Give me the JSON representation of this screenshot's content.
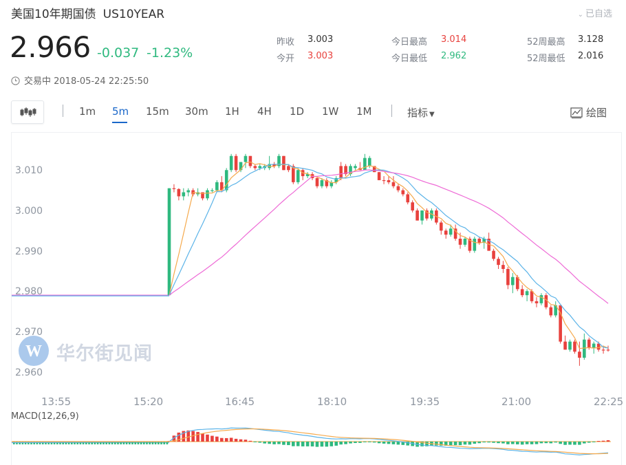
{
  "header": {
    "name": "美国10年期国债",
    "code": "US10YEAR",
    "watch_label": "已自选",
    "price": "2.966",
    "change": "-0.037",
    "change_pct": "-1.23%",
    "status": "交易中 2018-05-24 22:25:50"
  },
  "stats": {
    "prev_close_label": "昨收",
    "prev_close": "3.003",
    "open_label": "今开",
    "open": "3.003",
    "high_label": "今日最高",
    "high": "3.014",
    "low_label": "今日最低",
    "low": "2.962",
    "wk52_high_label": "52周最高",
    "wk52_high": "3.128",
    "wk52_low_label": "52周最低",
    "wk52_low": "2.016"
  },
  "toolbar": {
    "tabs": [
      "1m",
      "5m",
      "15m",
      "30m",
      "1H",
      "4H",
      "1D",
      "1W",
      "1M"
    ],
    "active_tab": "5m",
    "indicator_label": "指标",
    "draw_label": "绘图"
  },
  "watermark": "华尔街见闻",
  "colors": {
    "up": "#2fb97f",
    "down": "#e8413d",
    "ma5": "#f5a94c",
    "ma10": "#5ab3e8",
    "ma30": "#ee6ad6",
    "accent": "#1a67c9"
  },
  "chart_data": {
    "type": "candlestick",
    "ylim": [
      2.956,
      3.016
    ],
    "ytick_labels": [
      "3.010",
      "3.000",
      "2.990",
      "2.980",
      "2.970",
      "2.960"
    ],
    "yticks": [
      3.01,
      3.0,
      2.99,
      2.98,
      2.97,
      2.96
    ],
    "xtick_labels": [
      "13:55",
      "15:20",
      "16:45",
      "18:10",
      "19:35",
      "21:00",
      "22:25"
    ],
    "interval": "5m",
    "flat_price_before_open": 2.9795,
    "candles": [
      [
        3.006,
        3.006,
        2.9795,
        2.9795,
        "up"
      ],
      [
        3.006,
        3.007,
        3.005,
        3.0058,
        "dn"
      ],
      [
        3.0058,
        3.006,
        3.003,
        3.004,
        "dn"
      ],
      [
        3.004,
        3.006,
        3.003,
        3.005,
        "up"
      ],
      [
        3.005,
        3.006,
        3.004,
        3.0055,
        "up"
      ],
      [
        3.0055,
        3.006,
        3.004,
        3.0045,
        "dn"
      ],
      [
        3.0045,
        3.006,
        3.004,
        3.005,
        "up"
      ],
      [
        3.005,
        3.005,
        3.003,
        3.0035,
        "dn"
      ],
      [
        3.0035,
        3.006,
        3.003,
        3.0055,
        "up"
      ],
      [
        3.0055,
        3.006,
        3.005,
        3.0055,
        "up"
      ],
      [
        3.0055,
        3.008,
        3.005,
        3.0075,
        "up"
      ],
      [
        3.0075,
        3.009,
        3.005,
        3.0055,
        "dn"
      ],
      [
        3.0055,
        3.011,
        3.005,
        3.0105,
        "up"
      ],
      [
        3.0105,
        3.0145,
        3.01,
        3.014,
        "up"
      ],
      [
        3.014,
        3.0145,
        3.01,
        3.0105,
        "dn"
      ],
      [
        3.0105,
        3.012,
        3.01,
        3.0125,
        "up"
      ],
      [
        3.0125,
        3.0145,
        3.011,
        3.014,
        "up"
      ],
      [
        3.014,
        3.014,
        3.011,
        3.0115,
        "dn"
      ],
      [
        3.0115,
        3.012,
        3.0105,
        3.011,
        "dn"
      ],
      [
        3.011,
        3.012,
        3.0105,
        3.0115,
        "up"
      ],
      [
        3.0115,
        3.012,
        3.0105,
        3.011,
        "up"
      ],
      [
        3.011,
        3.014,
        3.0105,
        3.012,
        "up"
      ],
      [
        3.012,
        3.0125,
        3.011,
        3.0115,
        "dn"
      ],
      [
        3.0115,
        3.0145,
        3.011,
        3.014,
        "up"
      ],
      [
        3.014,
        3.014,
        3.0105,
        3.0105,
        "dn"
      ],
      [
        3.0105,
        3.012,
        3.01,
        3.0115,
        "dn"
      ],
      [
        3.0115,
        3.012,
        3.007,
        3.0075,
        "dn"
      ],
      [
        3.0075,
        3.011,
        3.007,
        3.0105,
        "up"
      ],
      [
        3.0105,
        3.011,
        3.008,
        3.009,
        "dn"
      ],
      [
        3.009,
        3.01,
        3.0085,
        3.0095,
        "up"
      ],
      [
        3.0095,
        3.01,
        3.008,
        3.0085,
        "dn"
      ],
      [
        3.0085,
        3.009,
        3.006,
        3.0065,
        "dn"
      ],
      [
        3.0065,
        3.0085,
        3.006,
        3.008,
        "up"
      ],
      [
        3.008,
        3.0085,
        3.006,
        3.0065,
        "dn"
      ],
      [
        3.0065,
        3.008,
        3.006,
        3.0075,
        "up"
      ],
      [
        3.0075,
        3.009,
        3.007,
        3.0085,
        "up"
      ],
      [
        3.0085,
        3.0125,
        3.008,
        3.0115,
        "dn"
      ],
      [
        3.0115,
        3.012,
        3.009,
        3.0095,
        "dn"
      ],
      [
        3.0095,
        3.012,
        3.009,
        3.0115,
        "up"
      ],
      [
        3.0115,
        3.012,
        3.0105,
        3.011,
        "up"
      ],
      [
        3.011,
        3.0125,
        3.0105,
        3.0105,
        "dn"
      ],
      [
        3.0105,
        3.0145,
        3.0105,
        3.0135,
        "up"
      ],
      [
        3.0135,
        3.014,
        3.011,
        3.0115,
        "up"
      ],
      [
        3.0115,
        3.0115,
        3.01,
        3.01,
        "dn"
      ],
      [
        3.01,
        3.01,
        3.008,
        3.008,
        "dn"
      ],
      [
        3.008,
        3.009,
        3.007,
        3.008,
        "dn"
      ],
      [
        3.008,
        3.009,
        3.007,
        3.0075,
        "dn"
      ],
      [
        3.0075,
        3.009,
        3.006,
        3.0065,
        "dn"
      ],
      [
        3.0065,
        3.007,
        3.005,
        3.0055,
        "dn"
      ],
      [
        3.0055,
        3.006,
        3.004,
        3.0045,
        "dn"
      ],
      [
        3.0045,
        3.005,
        3.002,
        3.0025,
        "dn"
      ],
      [
        3.0025,
        3.003,
        3.0,
        3.0005,
        "dn"
      ],
      [
        3.0005,
        3.001,
        2.998,
        2.998,
        "dn"
      ],
      [
        2.998,
        3.0005,
        2.997,
        3.0005,
        "up"
      ],
      [
        3.0005,
        3.001,
        2.998,
        2.9985,
        "dn"
      ],
      [
        2.9985,
        3.001,
        2.998,
        3.0005,
        "up"
      ],
      [
        3.0005,
        3.001,
        2.997,
        2.9975,
        "dn"
      ],
      [
        2.9975,
        2.998,
        2.9945,
        2.9955,
        "dn"
      ],
      [
        2.9955,
        2.996,
        2.9935,
        2.9945,
        "dn"
      ],
      [
        2.9945,
        2.997,
        2.994,
        2.996,
        "up"
      ],
      [
        2.996,
        2.997,
        2.993,
        2.9935,
        "dn"
      ],
      [
        2.9935,
        2.995,
        2.991,
        2.992,
        "dn"
      ],
      [
        2.992,
        2.994,
        2.9915,
        2.9935,
        "up"
      ],
      [
        2.9935,
        2.994,
        2.99,
        2.9905,
        "dn"
      ],
      [
        2.9905,
        2.994,
        2.99,
        2.9935,
        "up"
      ],
      [
        2.9935,
        2.994,
        2.992,
        2.9925,
        "dn"
      ],
      [
        2.9925,
        2.994,
        2.991,
        2.9935,
        "up"
      ],
      [
        2.9935,
        2.995,
        2.9905,
        2.9905,
        "dn"
      ],
      [
        2.9905,
        2.991,
        2.988,
        2.9885,
        "dn"
      ],
      [
        2.9885,
        2.989,
        2.986,
        2.987,
        "dn"
      ],
      [
        2.987,
        2.988,
        2.985,
        2.986,
        "dn"
      ],
      [
        2.986,
        2.9865,
        2.981,
        2.982,
        "dn"
      ],
      [
        2.982,
        2.985,
        2.98,
        2.984,
        "up"
      ],
      [
        2.984,
        2.9845,
        2.9805,
        2.981,
        "dn"
      ],
      [
        2.981,
        2.982,
        2.979,
        2.9795,
        "dn"
      ],
      [
        2.9795,
        2.981,
        2.978,
        2.9805,
        "up"
      ],
      [
        2.9805,
        2.981,
        2.9775,
        2.978,
        "dn"
      ],
      [
        2.978,
        2.979,
        2.9765,
        2.9775,
        "dn"
      ],
      [
        2.9775,
        2.98,
        2.977,
        2.9795,
        "up"
      ],
      [
        2.9795,
        2.98,
        2.976,
        2.9765,
        "dn"
      ],
      [
        2.9765,
        2.977,
        2.974,
        2.9745,
        "dn"
      ],
      [
        2.9745,
        2.978,
        2.974,
        2.977,
        "up"
      ],
      [
        2.977,
        2.977,
        2.9675,
        2.968,
        "dn"
      ],
      [
        2.968,
        2.9695,
        2.966,
        2.966,
        "dn"
      ],
      [
        2.966,
        2.9685,
        2.9655,
        2.968,
        "up"
      ],
      [
        2.968,
        2.9685,
        2.965,
        2.9655,
        "dn"
      ],
      [
        2.9655,
        2.968,
        2.962,
        2.964,
        "dn"
      ],
      [
        2.964,
        2.97,
        2.9635,
        2.9685,
        "up"
      ],
      [
        2.9685,
        2.969,
        2.966,
        2.9665,
        "dn"
      ],
      [
        2.9665,
        2.968,
        2.965,
        2.9675,
        "up"
      ],
      [
        2.9675,
        2.968,
        2.9655,
        2.966,
        "dn"
      ],
      [
        2.966,
        2.967,
        2.965,
        2.966,
        "dn"
      ],
      [
        2.966,
        2.967,
        2.9655,
        2.966,
        "dn"
      ]
    ],
    "macd": {
      "label": "MACD(12,26,9)",
      "params": [
        12,
        26,
        9
      ]
    }
  }
}
